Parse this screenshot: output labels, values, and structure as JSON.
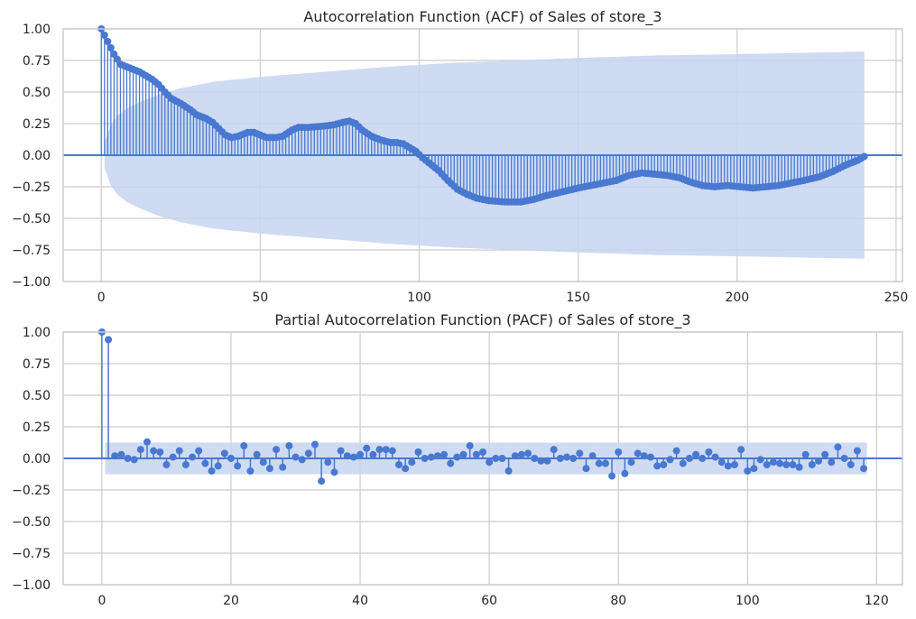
{
  "chart_data": [
    {
      "type": "stem",
      "title": "Autocorrelation Function (ACF) of Sales of store_3",
      "xlabel": "",
      "ylabel": "",
      "xlim": [
        -12,
        252
      ],
      "ylim": [
        -1.0,
        1.0
      ],
      "xticks": [
        0,
        50,
        100,
        150,
        200,
        250
      ],
      "yticks": [
        -1.0,
        -0.75,
        -0.5,
        -0.25,
        0.0,
        0.25,
        0.5,
        0.75,
        1.0
      ],
      "xtick_labels": [
        "0",
        "50",
        "100",
        "150",
        "200",
        "250"
      ],
      "ytick_labels": [
        "−1.00",
        "−0.75",
        "−0.50",
        "−0.25",
        "0.00",
        "0.25",
        "0.50",
        "0.75",
        "1.00"
      ],
      "grid": true,
      "colors": {
        "marker": "#4878d0",
        "band": "#c5d5f0",
        "zero_line": "#4878d0"
      },
      "max_lag": 240,
      "acf_keypoints": [
        [
          0,
          1.0
        ],
        [
          1,
          0.95
        ],
        [
          2,
          0.9
        ],
        [
          3,
          0.85
        ],
        [
          4,
          0.8
        ],
        [
          5,
          0.76
        ],
        [
          6,
          0.72
        ],
        [
          8,
          0.7
        ],
        [
          10,
          0.68
        ],
        [
          12,
          0.66
        ],
        [
          14,
          0.63
        ],
        [
          16,
          0.6
        ],
        [
          18,
          0.56
        ],
        [
          20,
          0.5
        ],
        [
          22,
          0.45
        ],
        [
          25,
          0.41
        ],
        [
          28,
          0.36
        ],
        [
          30,
          0.32
        ],
        [
          33,
          0.29
        ],
        [
          35,
          0.26
        ],
        [
          37,
          0.21
        ],
        [
          39,
          0.16
        ],
        [
          41,
          0.14
        ],
        [
          43,
          0.15
        ],
        [
          46,
          0.18
        ],
        [
          48,
          0.18
        ],
        [
          50,
          0.16
        ],
        [
          52,
          0.14
        ],
        [
          55,
          0.14
        ],
        [
          57,
          0.15
        ],
        [
          60,
          0.2
        ],
        [
          62,
          0.22
        ],
        [
          65,
          0.22
        ],
        [
          70,
          0.23
        ],
        [
          73,
          0.24
        ],
        [
          76,
          0.26
        ],
        [
          78,
          0.27
        ],
        [
          80,
          0.25
        ],
        [
          82,
          0.2
        ],
        [
          85,
          0.15
        ],
        [
          88,
          0.12
        ],
        [
          91,
          0.1
        ],
        [
          93,
          0.1
        ],
        [
          95,
          0.09
        ],
        [
          97,
          0.06
        ],
        [
          99,
          0.03
        ],
        [
          101,
          -0.02
        ],
        [
          103,
          -0.06
        ],
        [
          106,
          -0.12
        ],
        [
          109,
          -0.2
        ],
        [
          112,
          -0.27
        ],
        [
          115,
          -0.31
        ],
        [
          118,
          -0.34
        ],
        [
          122,
          -0.36
        ],
        [
          127,
          -0.37
        ],
        [
          132,
          -0.37
        ],
        [
          136,
          -0.35
        ],
        [
          140,
          -0.32
        ],
        [
          145,
          -0.29
        ],
        [
          150,
          -0.26
        ],
        [
          154,
          -0.24
        ],
        [
          158,
          -0.22
        ],
        [
          162,
          -0.2
        ],
        [
          166,
          -0.16
        ],
        [
          170,
          -0.14
        ],
        [
          174,
          -0.15
        ],
        [
          178,
          -0.16
        ],
        [
          182,
          -0.18
        ],
        [
          185,
          -0.21
        ],
        [
          189,
          -0.24
        ],
        [
          193,
          -0.25
        ],
        [
          197,
          -0.24
        ],
        [
          201,
          -0.25
        ],
        [
          205,
          -0.26
        ],
        [
          209,
          -0.25
        ],
        [
          213,
          -0.24
        ],
        [
          217,
          -0.22
        ],
        [
          221,
          -0.2
        ],
        [
          226,
          -0.17
        ],
        [
          230,
          -0.13
        ],
        [
          234,
          -0.08
        ],
        [
          238,
          -0.04
        ],
        [
          240,
          -0.01
        ]
      ],
      "confidence_band_keypoints": [
        [
          1,
          0.1
        ],
        [
          3,
          0.24
        ],
        [
          5,
          0.31
        ],
        [
          8,
          0.37
        ],
        [
          12,
          0.42
        ],
        [
          18,
          0.48
        ],
        [
          25,
          0.53
        ],
        [
          35,
          0.58
        ],
        [
          50,
          0.62
        ],
        [
          70,
          0.66
        ],
        [
          90,
          0.7
        ],
        [
          110,
          0.73
        ],
        [
          130,
          0.75
        ],
        [
          150,
          0.77
        ],
        [
          175,
          0.79
        ],
        [
          200,
          0.8
        ],
        [
          220,
          0.81
        ],
        [
          240,
          0.82
        ]
      ]
    },
    {
      "type": "stem",
      "title": "Partial Autocorrelation Function (PACF) of Sales of store_3",
      "xlabel": "",
      "ylabel": "",
      "xlim": [
        -6,
        124
      ],
      "ylim": [
        -1.0,
        1.0
      ],
      "xticks": [
        0,
        20,
        40,
        60,
        80,
        100,
        120
      ],
      "yticks": [
        -1.0,
        -0.75,
        -0.5,
        -0.25,
        0.0,
        0.25,
        0.5,
        0.75,
        1.0
      ],
      "xtick_labels": [
        "0",
        "20",
        "40",
        "60",
        "80",
        "100",
        "120"
      ],
      "ytick_labels": [
        "−1.00",
        "−0.75",
        "−0.50",
        "−0.25",
        "0.00",
        "0.25",
        "0.50",
        "0.75",
        "1.00"
      ],
      "grid": true,
      "colors": {
        "marker": "#4878d0",
        "band": "#c5d5f0",
        "zero_line": "#4878d0"
      },
      "confidence_band": 0.125,
      "band_x_range": [
        0.5,
        118.5
      ],
      "values": [
        1.0,
        0.94,
        0.02,
        0.03,
        0.0,
        -0.01,
        0.07,
        0.13,
        0.06,
        0.05,
        -0.05,
        0.01,
        0.06,
        -0.05,
        0.01,
        0.06,
        -0.04,
        -0.1,
        -0.06,
        0.04,
        0.0,
        -0.06,
        0.1,
        -0.1,
        0.03,
        -0.03,
        -0.08,
        0.07,
        -0.07,
        0.1,
        0.01,
        -0.01,
        0.04,
        0.11,
        -0.18,
        -0.03,
        -0.11,
        0.06,
        0.02,
        0.01,
        0.03,
        0.08,
        0.03,
        0.07,
        0.07,
        0.06,
        -0.05,
        -0.08,
        -0.03,
        0.05,
        0.0,
        0.01,
        0.02,
        0.03,
        -0.04,
        0.01,
        0.03,
        0.1,
        0.03,
        0.05,
        -0.03,
        0.0,
        0.0,
        -0.1,
        0.02,
        0.03,
        0.04,
        0.0,
        -0.02,
        -0.02,
        0.07,
        0.0,
        0.01,
        0.0,
        0.04,
        -0.08,
        0.02,
        -0.04,
        -0.04,
        -0.14,
        0.05,
        -0.12,
        -0.03,
        0.04,
        0.02,
        0.01,
        -0.06,
        -0.05,
        -0.01,
        0.06,
        -0.04,
        0.0,
        0.03,
        0.0,
        0.05,
        0.01,
        -0.03,
        -0.06,
        -0.05,
        0.07,
        -0.1,
        -0.08,
        -0.01,
        -0.05,
        -0.03,
        -0.04,
        -0.05,
        -0.05,
        -0.07,
        0.03,
        -0.05,
        -0.02,
        0.03,
        -0.03,
        0.09,
        0.0,
        -0.05,
        0.06,
        -0.08
      ]
    }
  ]
}
